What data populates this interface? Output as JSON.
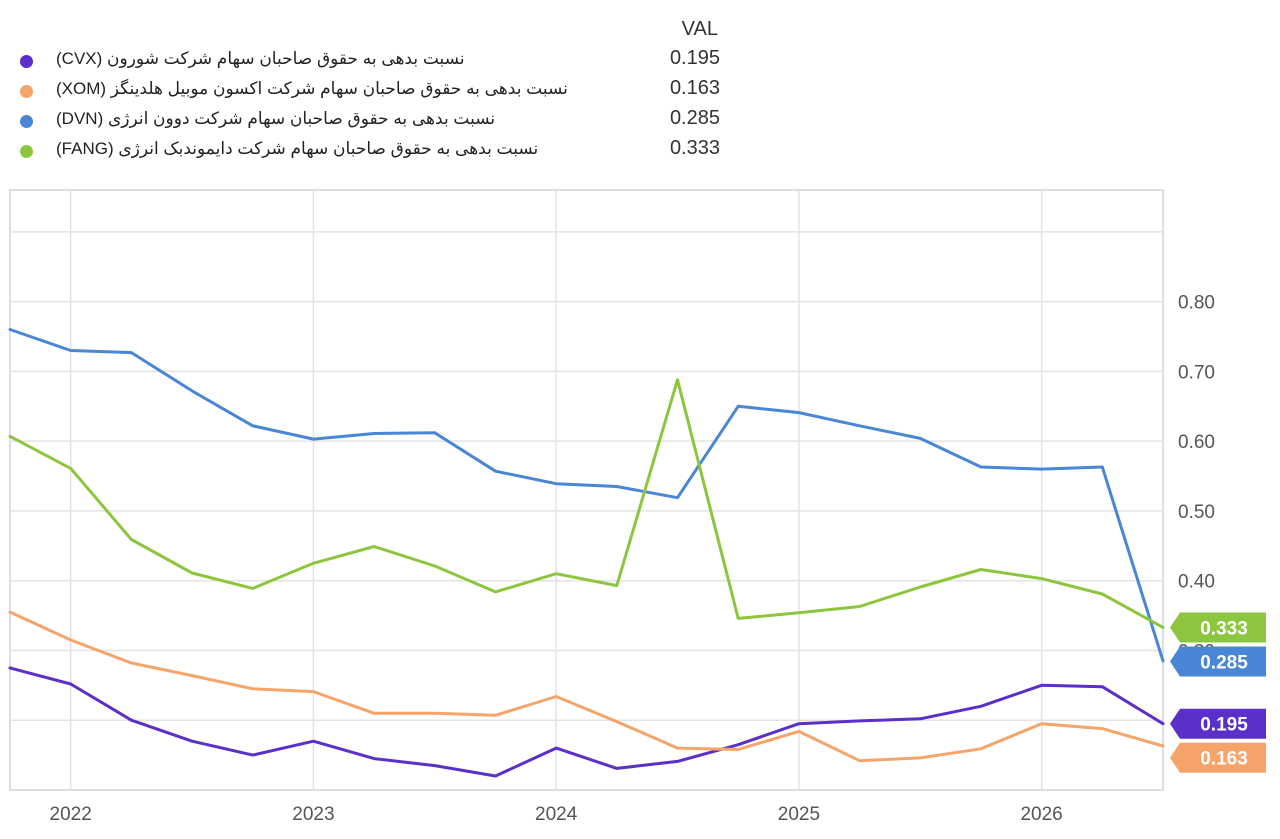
{
  "legend": {
    "value_header": "VAL",
    "items": [
      {
        "name": "نسبت بدهی به حقوق صاحبان سهام شرکت شورون (CVX)",
        "value": "0.195",
        "color": "#5b2fc9"
      },
      {
        "name": "نسبت بدهی به حقوق صاحبان سهام شرکت اکسون موبیل هلدینگز (XOM)",
        "value": "0.163",
        "color": "#f7a46b"
      },
      {
        "name": "نسبت بدهی به حقوق صاحبان سهام شرکت دوون انرژی (DVN)",
        "value": "0.285",
        "color": "#4a86d6"
      },
      {
        "name": "نسبت بدهی به حقوق صاحبان سهام شرکت دایموندبک انرژی (FANG)",
        "value": "0.333",
        "color": "#8cc63f"
      }
    ]
  },
  "chart_data": {
    "type": "line",
    "x_ticks": [
      "2022",
      "2023",
      "2024",
      "2025",
      "2026"
    ],
    "x_tick_values": [
      2022.0,
      2023.0,
      2024.0,
      2025.0,
      2026.0
    ],
    "y_ticks": [
      "0.20",
      "0.30",
      "0.40",
      "0.50",
      "0.60",
      "0.70",
      "0.80"
    ],
    "y_tick_values": [
      0.2,
      0.3,
      0.4,
      0.5,
      0.6,
      0.7,
      0.8
    ],
    "xlim": [
      2021.75,
      2026.5
    ],
    "ylim": [
      0.1,
      0.96
    ],
    "grid": true,
    "x": [
      2021.75,
      2022.0,
      2022.25,
      2022.5,
      2022.75,
      2023.0,
      2023.25,
      2023.5,
      2023.75,
      2024.0,
      2024.25,
      2024.5,
      2024.75,
      2025.0,
      2025.25,
      2025.5,
      2025.75,
      2026.0,
      2026.25,
      2026.5
    ],
    "series": [
      {
        "name": "CVX",
        "color": "#5b2fc9",
        "last": "0.195",
        "values": [
          0.275,
          0.252,
          0.2,
          0.17,
          0.15,
          0.17,
          0.145,
          0.135,
          0.12,
          0.16,
          0.131,
          0.141,
          0.165,
          0.195,
          0.199,
          0.202,
          0.22,
          0.25,
          0.248,
          0.195
        ]
      },
      {
        "name": "XOM",
        "color": "#f7a46b",
        "last": "0.163",
        "values": [
          0.355,
          0.315,
          0.282,
          0.264,
          0.245,
          0.241,
          0.21,
          0.21,
          0.207,
          0.234,
          0.198,
          0.16,
          0.158,
          0.184,
          0.142,
          0.146,
          0.159,
          0.195,
          0.188,
          0.163
        ]
      },
      {
        "name": "DVN",
        "color": "#4a86d6",
        "last": "0.285",
        "values": [
          0.76,
          0.73,
          0.727,
          0.672,
          0.622,
          0.603,
          0.611,
          0.612,
          0.557,
          0.539,
          0.535,
          0.519,
          0.65,
          0.641,
          0.622,
          0.604,
          0.563,
          0.56,
          0.563,
          0.285
        ]
      },
      {
        "name": "FANG",
        "color": "#8cc63f",
        "last": "0.333",
        "values": [
          0.607,
          0.561,
          0.459,
          0.411,
          0.389,
          0.425,
          0.449,
          0.421,
          0.384,
          0.41,
          0.393,
          0.688,
          0.346,
          0.354,
          0.363,
          0.391,
          0.416,
          0.403,
          0.381,
          0.333
        ]
      }
    ]
  }
}
